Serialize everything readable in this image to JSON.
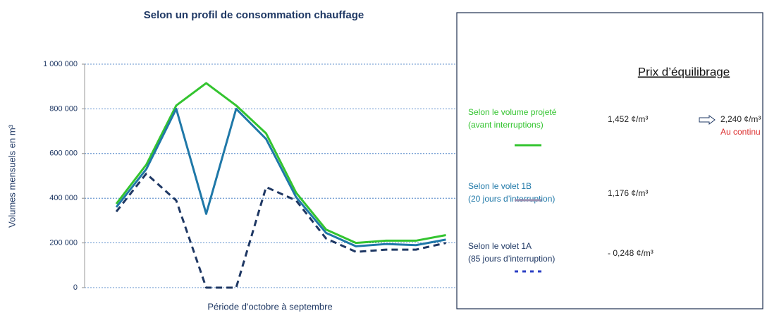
{
  "chart_data": {
    "type": "line",
    "title": "Selon un profil de consommation chauffage",
    "ylabel": "Volumes mensuels en m³",
    "xlabel": "Période d'octobre à septembre",
    "categories": [
      null,
      null,
      null,
      null,
      null,
      null,
      null,
      null,
      null,
      null,
      null,
      null
    ],
    "ylim": [
      0,
      1000000
    ],
    "yticks": [
      0,
      {
        "value": 200000,
        "label": "200 000"
      },
      {
        "value": 400000,
        "label": "400 000"
      },
      {
        "value": 600000,
        "label": "600 000"
      },
      {
        "value": 800000,
        "label": "800 000"
      },
      {
        "value": 1000000,
        "label": "1 000 000"
      }
    ],
    "grid": true,
    "legend_title": "Prix d’équilibrage",
    "series": [
      {
        "name": "Selon le volume projeté",
        "detail": "(avant interruptions)",
        "price": "1,452 ¢/m³",
        "price_continuous": "2,240 ¢/m³",
        "price_continuous_label": "Au continu",
        "color": "#33c42f",
        "legend_color": "#33c42f",
        "dashed": false,
        "values": [
          375000,
          550000,
          815000,
          915000,
          815000,
          690000,
          425000,
          260000,
          200000,
          210000,
          210000,
          235000
        ]
      },
      {
        "name": "Selon le volet 1B",
        "detail": "(20 jours d’interruption)",
        "price": "1,176 ¢/m³",
        "color": "#1f78a8",
        "legend_color": "#9b8fb0",
        "dashed": false,
        "values": [
          360000,
          530000,
          800000,
          330000,
          800000,
          665000,
          405000,
          245000,
          185000,
          195000,
          190000,
          215000
        ]
      },
      {
        "name": "Selon le volet 1A",
        "detail": "(85 jours d’interruption)",
        "price": "- 0,248 ¢/m³",
        "color": "#1f3864",
        "legend_color": "#2b3fc4",
        "dashed": true,
        "values": [
          340000,
          510000,
          390000,
          0,
          0,
          450000,
          390000,
          220000,
          160000,
          170000,
          170000,
          200000
        ]
      }
    ]
  }
}
